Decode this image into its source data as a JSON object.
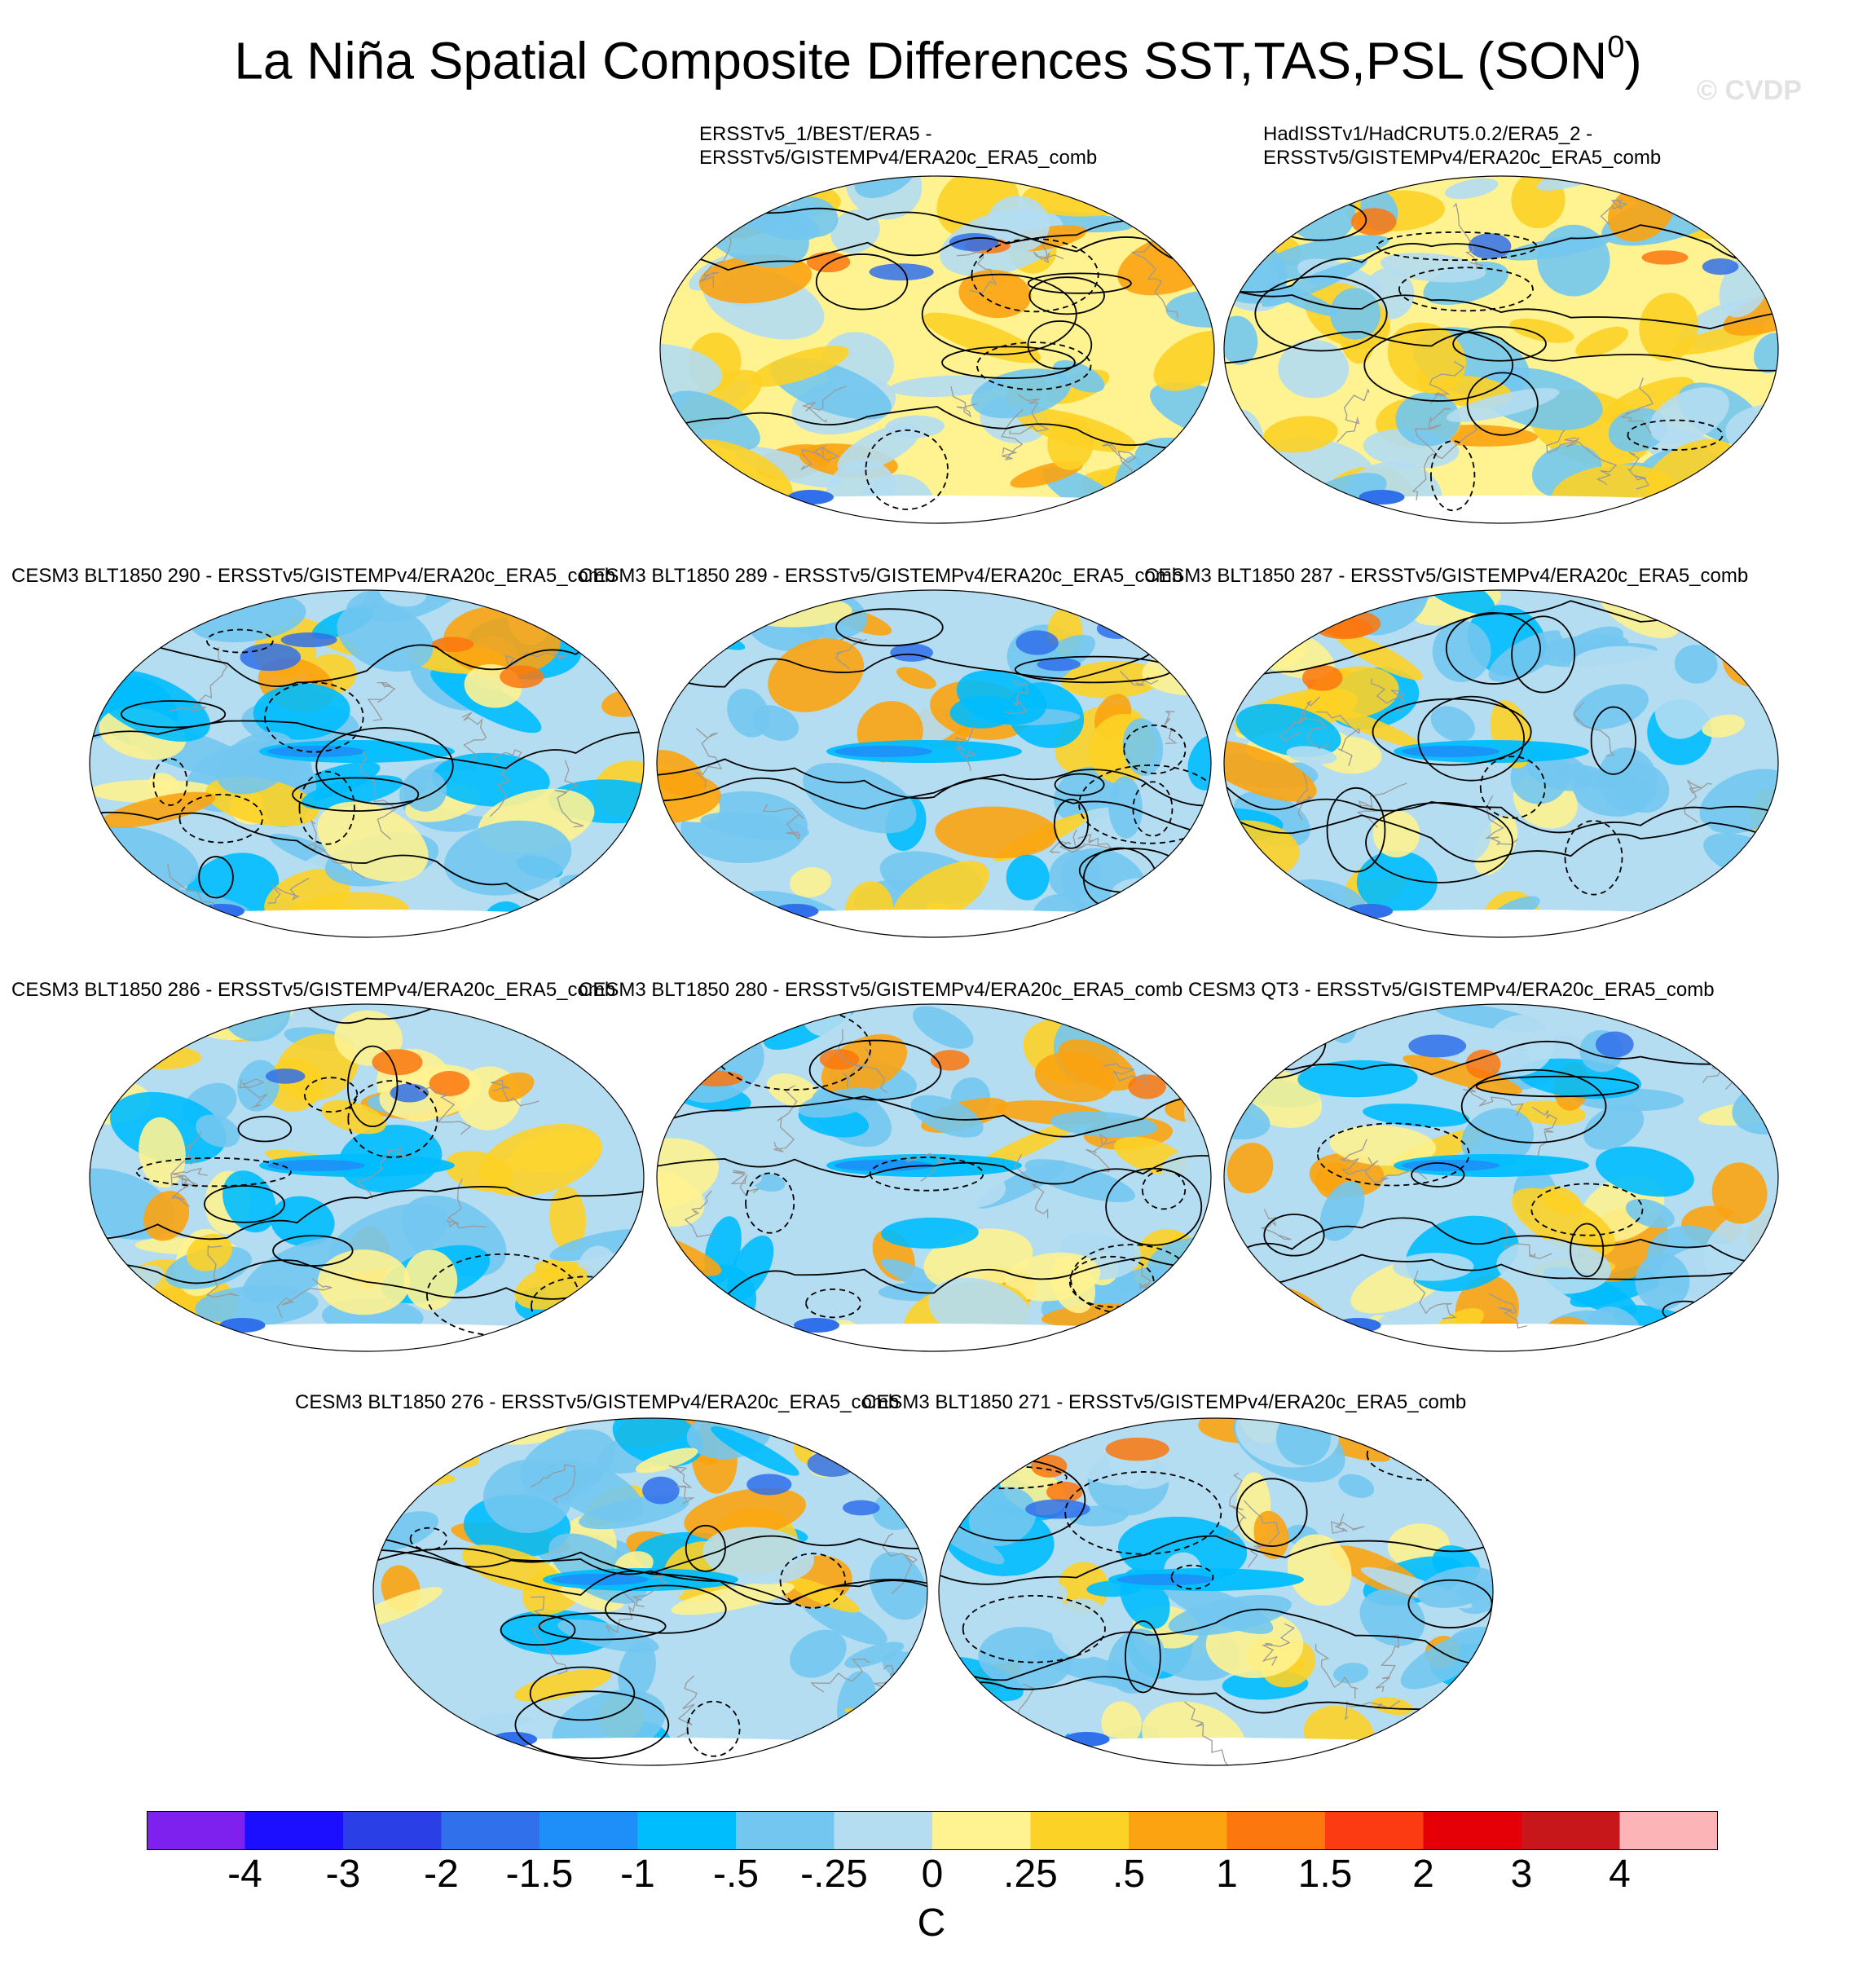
{
  "figure": {
    "title": "La Niña Spatial Composite Differences SST,TAS,PSL (SON",
    "title_superscript": "0",
    "title_close": ")",
    "copyright": "© CVDP"
  },
  "chart_data": {
    "type": "heatmap",
    "projection": "Robinson (global)",
    "variables": [
      "SST",
      "TAS",
      "PSL"
    ],
    "season": "SON",
    "fill_variable": "SST/TAS composite difference",
    "contour_variable": "PSL composite difference (solid positive, dashed negative)",
    "panels": [
      {
        "label": "ERSSTv5_1/BEST/ERA5 -\nERSSTv5/GISTEMPv4/ERA20c_ERA5_comb"
      },
      {
        "label": "HadISSTv1/HadCRUT5.0.2/ERA5_2 -\nERSSTv5/GISTEMPv4/ERA20c_ERA5_comb"
      },
      {
        "label": "CESM3 BLT1850 290 - ERSSTv5/GISTEMPv4/ERA20c_ERA5_comb"
      },
      {
        "label": "CESM3 BLT1850 289 - ERSSTv5/GISTEMPv4/ERA20c_ERA5_comb"
      },
      {
        "label": "CESM3 BLT1850 287 - ERSSTv5/GISTEMPv4/ERA20c_ERA5_comb"
      },
      {
        "label": "CESM3 BLT1850 286 - ERSSTv5/GISTEMPv4/ERA20c_ERA5_comb"
      },
      {
        "label": "CESM3 BLT1850 280 - ERSSTv5/GISTEMPv4/ERA20c_ERA5_comb"
      },
      {
        "label": "CESM3 QT3 - ERSSTv5/GISTEMPv4/ERA20c_ERA5_comb"
      },
      {
        "label": "CESM3 BLT1850 276 - ERSSTv5/GISTEMPv4/ERA20c_ERA5_comb"
      },
      {
        "label": "CESM3 BLT1850 271 - ERSSTv5/GISTEMPv4/ERA20c_ERA5_comb"
      }
    ],
    "colorbar": {
      "levels": [
        "-4",
        "-3",
        "-2",
        "-1.5",
        "-1",
        "-.5",
        "-.25",
        "0",
        ".25",
        ".5",
        "1",
        "1.5",
        "2",
        "3",
        "4"
      ],
      "colors": [
        "#7e20ee",
        "#1c0eff",
        "#2a40e6",
        "#3070ea",
        "#1e8ff8",
        "#00bdfe",
        "#72c6f0",
        "#b4ddf2",
        "#fef291",
        "#fdd226",
        "#fba311",
        "#fc770e",
        "#fd3b12",
        "#e40006",
        "#c8171a",
        "#fdb4b6"
      ],
      "unit": "C"
    }
  }
}
